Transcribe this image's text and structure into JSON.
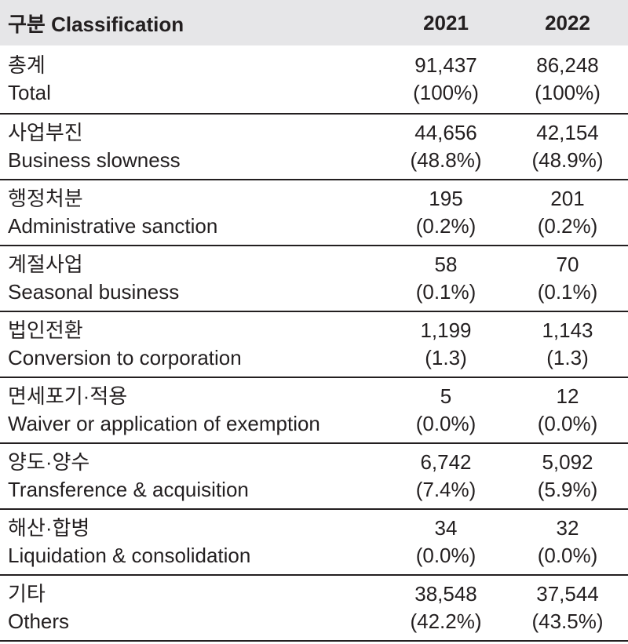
{
  "header": {
    "classification": "구분  Classification",
    "years": [
      "2021",
      "2022"
    ]
  },
  "rows": [
    {
      "ko": "총계",
      "en": "Total",
      "v2021": "91,437",
      "p2021": "(100%)",
      "v2022": "86,248",
      "p2022": "(100%)"
    },
    {
      "ko": "사업부진",
      "en": "Business slowness",
      "v2021": "44,656",
      "p2021": "(48.8%)",
      "v2022": "42,154",
      "p2022": "(48.9%)"
    },
    {
      "ko": "행정처분",
      "en": "Administrative sanction",
      "v2021": "195",
      "p2021": "(0.2%)",
      "v2022": "201",
      "p2022": "(0.2%)"
    },
    {
      "ko": "계절사업",
      "en": "Seasonal business",
      "v2021": "58",
      "p2021": "(0.1%)",
      "v2022": "70",
      "p2022": "(0.1%)"
    },
    {
      "ko": "법인전환",
      "en": "Conversion to corporation",
      "v2021": "1,199",
      "p2021": "(1.3)",
      "v2022": "1,143",
      "p2022": "(1.3)"
    },
    {
      "ko": "면세포기·적용",
      "en": "Waiver or application of exemption",
      "v2021": "5",
      "p2021": "(0.0%)",
      "v2022": "12",
      "p2022": "(0.0%)"
    },
    {
      "ko": "양도·양수",
      "en": "Transference & acquisition",
      "v2021": "6,742",
      "p2021": "(7.4%)",
      "v2022": "5,092",
      "p2022": "(5.9%)"
    },
    {
      "ko": "해산·합병",
      "en": "Liquidation & consolidation",
      "v2021": "34",
      "p2021": "(0.0%)",
      "v2022": "32",
      "p2022": "(0.0%)"
    },
    {
      "ko": "기타",
      "en": "Others",
      "v2021": "38,548",
      "p2021": "(42.2%)",
      "v2022": "37,544",
      "p2022": "(43.5%)"
    }
  ]
}
